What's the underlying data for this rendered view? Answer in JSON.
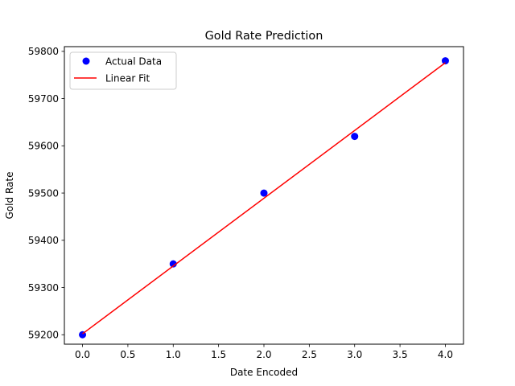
{
  "chart_data": {
    "type": "scatter",
    "title": "Gold Rate Prediction",
    "xlabel": "Date Encoded",
    "ylabel": "Gold Rate",
    "xlim": [
      -0.2,
      4.2
    ],
    "ylim": [
      59180,
      59810
    ],
    "xticks": [
      0.0,
      0.5,
      1.0,
      1.5,
      2.0,
      2.5,
      3.0,
      3.5,
      4.0
    ],
    "xtick_labels": [
      "0.0",
      "0.5",
      "1.0",
      "1.5",
      "2.0",
      "2.5",
      "3.0",
      "3.5",
      "4.0"
    ],
    "yticks": [
      59200,
      59300,
      59400,
      59500,
      59600,
      59700,
      59800
    ],
    "ytick_labels": [
      "59200",
      "59300",
      "59400",
      "59500",
      "59600",
      "59700",
      "59800"
    ],
    "grid": false,
    "legend_position": "top-left",
    "series": [
      {
        "name": "Actual Data",
        "kind": "scatter",
        "color": "#0000ff",
        "x": [
          0,
          1,
          2,
          3,
          4
        ],
        "y": [
          59200,
          59350,
          59500,
          59620,
          59780
        ]
      },
      {
        "name": "Linear Fit",
        "kind": "line",
        "color": "#ff0000",
        "x": [
          0,
          4
        ],
        "y": [
          59202,
          59776
        ]
      }
    ]
  }
}
